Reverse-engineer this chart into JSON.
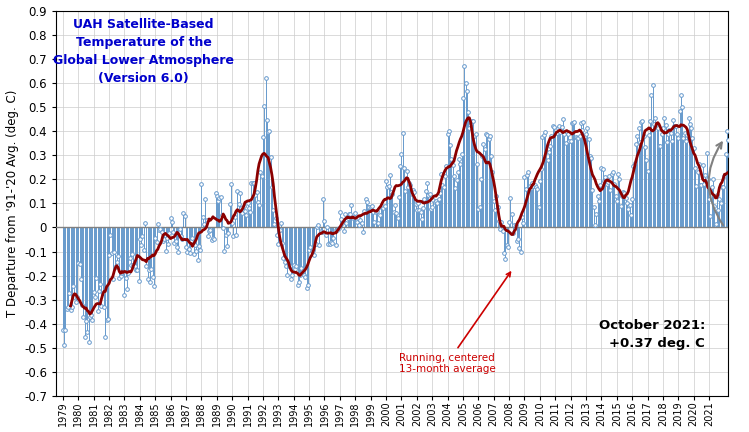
{
  "title": "UAH Satellite-Based\nTemperature of the\nGlobal Lower Atmosphere\n(Version 6.0)",
  "ylabel": "T Departure from '91-'20 Avg. (deg. C)",
  "ylim": [
    -0.7,
    0.9
  ],
  "yticks": [
    -0.7,
    -0.6,
    -0.5,
    -0.4,
    -0.3,
    -0.2,
    -0.1,
    0.0,
    0.1,
    0.2,
    0.3,
    0.4,
    0.5,
    0.6,
    0.7,
    0.8,
    0.9
  ],
  "annotation_text": "Running, centered\n13-month average",
  "note_text": "October 2021:\n+0.37 deg. C",
  "line_color": "#8B0000",
  "scatter_color": "#6699CC",
  "vline_color": "#6699CC",
  "title_color": "#0000CC",
  "annotation_color": "#CC0000",
  "zero_line_color": "#808080",
  "grid_color": "#CCCCCC",
  "monthly_data": [
    -0.427,
    -0.488,
    -0.426,
    -0.34,
    -0.33,
    -0.274,
    -0.341,
    -0.33,
    -0.244,
    -0.287,
    -0.311,
    -0.287,
    -0.147,
    -0.15,
    -0.216,
    -0.322,
    -0.372,
    -0.453,
    -0.388,
    -0.433,
    -0.477,
    -0.373,
    -0.362,
    -0.382,
    -0.268,
    -0.287,
    -0.209,
    -0.348,
    -0.262,
    -0.234,
    -0.325,
    -0.271,
    -0.329,
    -0.454,
    -0.383,
    -0.378,
    -0.116,
    -0.032,
    -0.108,
    -0.215,
    -0.101,
    -0.165,
    -0.143,
    -0.118,
    -0.21,
    -0.2,
    -0.19,
    -0.185,
    -0.281,
    -0.211,
    -0.257,
    -0.189,
    -0.126,
    -0.155,
    -0.109,
    -0.157,
    -0.162,
    -0.177,
    -0.175,
    -0.222,
    -0.047,
    -0.073,
    -0.035,
    -0.092,
    0.018,
    -0.158,
    -0.213,
    -0.178,
    -0.226,
    -0.174,
    -0.206,
    -0.241,
    -0.045,
    -0.059,
    0.016,
    -0.01,
    -0.006,
    -0.02,
    -0.058,
    -0.049,
    -0.097,
    -0.044,
    -0.069,
    -0.025,
    0.038,
    0.021,
    -0.017,
    -0.065,
    -0.056,
    -0.08,
    -0.101,
    -0.005,
    -0.036,
    -0.048,
    0.059,
    0.049,
    -0.08,
    -0.102,
    -0.091,
    -0.106,
    -0.058,
    -0.042,
    -0.111,
    -0.073,
    -0.099,
    -0.134,
    -0.075,
    -0.094,
    0.181,
    0.043,
    0.015,
    0.119,
    0.032,
    -0.035,
    -0.014,
    -0.01,
    -0.052,
    -0.044,
    -0.047,
    0.141,
    0.131,
    0.108,
    0.122,
    0.126,
    0.051,
    -0.003,
    -0.096,
    -0.031,
    -0.079,
    -0.021,
    0.097,
    0.18,
    0.019,
    -0.035,
    0.044,
    -0.031,
    0.151,
    0.096,
    0.141,
    0.08,
    0.06,
    0.09,
    0.069,
    0.052,
    0.101,
    0.082,
    0.064,
    0.184,
    0.186,
    0.186,
    0.136,
    0.147,
    0.106,
    0.095,
    0.23,
    0.214,
    0.377,
    0.505,
    0.619,
    0.445,
    0.398,
    0.401,
    0.292,
    0.168,
    0.072,
    0.014,
    0.038,
    -0.033,
    -0.07,
    -0.01,
    0.018,
    -0.066,
    -0.128,
    -0.145,
    -0.161,
    -0.199,
    -0.161,
    -0.158,
    -0.212,
    -0.196,
    -0.155,
    -0.173,
    -0.161,
    -0.237,
    -0.225,
    -0.197,
    -0.17,
    -0.182,
    -0.199,
    -0.207,
    -0.253,
    -0.237,
    -0.095,
    -0.082,
    -0.098,
    -0.094,
    -0.113,
    -0.07,
    0.003,
    0.009,
    -0.073,
    -0.016,
    -0.017,
    0.12,
    0.027,
    -0.03,
    0.0,
    -0.069,
    -0.069,
    -0.059,
    -0.064,
    -0.044,
    -0.014,
    -0.071,
    -0.011,
    -0.002,
    0.065,
    0.035,
    0.019,
    -0.014,
    0.054,
    0.019,
    0.04,
    0.057,
    0.056,
    0.094,
    0.038,
    0.043,
    0.062,
    0.024,
    0.038,
    0.01,
    0.029,
    0.02,
    -0.018,
    0.069,
    0.12,
    0.105,
    0.083,
    0.083,
    0.083,
    0.087,
    0.064,
    0.023,
    0.063,
    0.067,
    0.019,
    0.052,
    0.085,
    0.09,
    0.079,
    0.089,
    0.193,
    0.169,
    0.17,
    0.216,
    0.149,
    0.139,
    0.066,
    0.094,
    0.062,
    0.041,
    0.127,
    0.256,
    0.303,
    0.391,
    0.248,
    0.152,
    0.235,
    0.169,
    0.186,
    0.175,
    0.139,
    0.154,
    0.146,
    0.098,
    0.072,
    0.103,
    0.072,
    0.063,
    0.037,
    0.08,
    0.119,
    0.15,
    0.183,
    0.133,
    0.139,
    0.076,
    0.085,
    0.114,
    0.105,
    0.109,
    0.1,
    0.118,
    0.143,
    0.222,
    0.176,
    0.169,
    0.215,
    0.254,
    0.388,
    0.399,
    0.341,
    0.286,
    0.261,
    0.213,
    0.162,
    0.198,
    0.229,
    0.282,
    0.262,
    0.305,
    0.539,
    0.668,
    0.599,
    0.566,
    0.479,
    0.413,
    0.432,
    0.443,
    0.441,
    0.378,
    0.387,
    0.264,
    0.077,
    0.083,
    0.199,
    0.297,
    0.347,
    0.327,
    0.387,
    0.384,
    0.369,
    0.379,
    0.297,
    0.23,
    0.109,
    0.073,
    0.131,
    0.085,
    0.027,
    -0.005,
    0.021,
    -0.013,
    -0.108,
    -0.129,
    -0.072,
    -0.08,
    0.023,
    0.121,
    0.055,
    -0.021,
    0.012,
    0.011,
    -0.058,
    -0.049,
    -0.087,
    -0.101,
    0.043,
    0.017,
    0.21,
    0.159,
    0.218,
    0.229,
    0.173,
    0.165,
    0.186,
    0.174,
    0.176,
    0.166,
    0.16,
    0.085,
    0.193,
    0.241,
    0.374,
    0.383,
    0.396,
    0.311,
    0.279,
    0.312,
    0.34,
    0.378,
    0.421,
    0.418,
    0.391,
    0.391,
    0.413,
    0.42,
    0.394,
    0.418,
    0.452,
    0.389,
    0.35,
    0.394,
    0.386,
    0.358,
    0.358,
    0.435,
    0.432,
    0.439,
    0.374,
    0.373,
    0.372,
    0.378,
    0.432,
    0.404,
    0.439,
    0.378,
    0.386,
    0.413,
    0.368,
    0.296,
    0.288,
    0.157,
    0.084,
    0.01,
    0.056,
    0.13,
    0.109,
    0.175,
    0.248,
    0.243,
    0.193,
    0.21,
    0.179,
    0.189,
    0.213,
    0.155,
    0.222,
    0.231,
    0.18,
    0.13,
    0.11,
    0.222,
    0.199,
    0.088,
    0.13,
    0.148,
    0.142,
    0.123,
    0.101,
    0.078,
    0.094,
    0.052,
    0.12,
    0.255,
    0.266,
    0.345,
    0.378,
    0.411,
    0.353,
    0.439,
    0.44,
    0.379,
    0.334,
    0.279,
    0.234,
    0.384,
    0.44,
    0.551,
    0.59,
    0.43,
    0.453,
    0.418,
    0.413,
    0.34,
    0.34,
    0.386,
    0.412,
    0.456,
    0.424,
    0.353,
    0.386,
    0.406,
    0.393,
    0.357,
    0.447,
    0.419,
    0.423,
    0.386,
    0.37,
    0.485,
    0.548,
    0.499,
    0.373,
    0.392,
    0.359,
    0.383,
    0.456,
    0.428,
    0.413,
    0.371,
    0.328,
    0.247,
    0.171,
    0.231,
    0.264,
    0.178,
    0.176,
    0.259,
    0.181,
    0.217,
    0.308,
    0.203,
    0.117,
    0.046,
    0.166,
    0.202,
    0.088,
    0.013,
    0.134,
    0.073,
    0.117,
    0.101,
    0.166,
    0.166,
    0.214,
    0.303,
    0.401,
    0.363,
    0.295,
    0.29,
    0.243,
    0.142,
    0.127,
    0.163,
    0.191,
    0.232,
    0.357,
    0.373,
    0.37
  ],
  "start_year": 1979,
  "start_month": 1,
  "xlim_left": 1978.6,
  "xlim_right": 2022.3
}
